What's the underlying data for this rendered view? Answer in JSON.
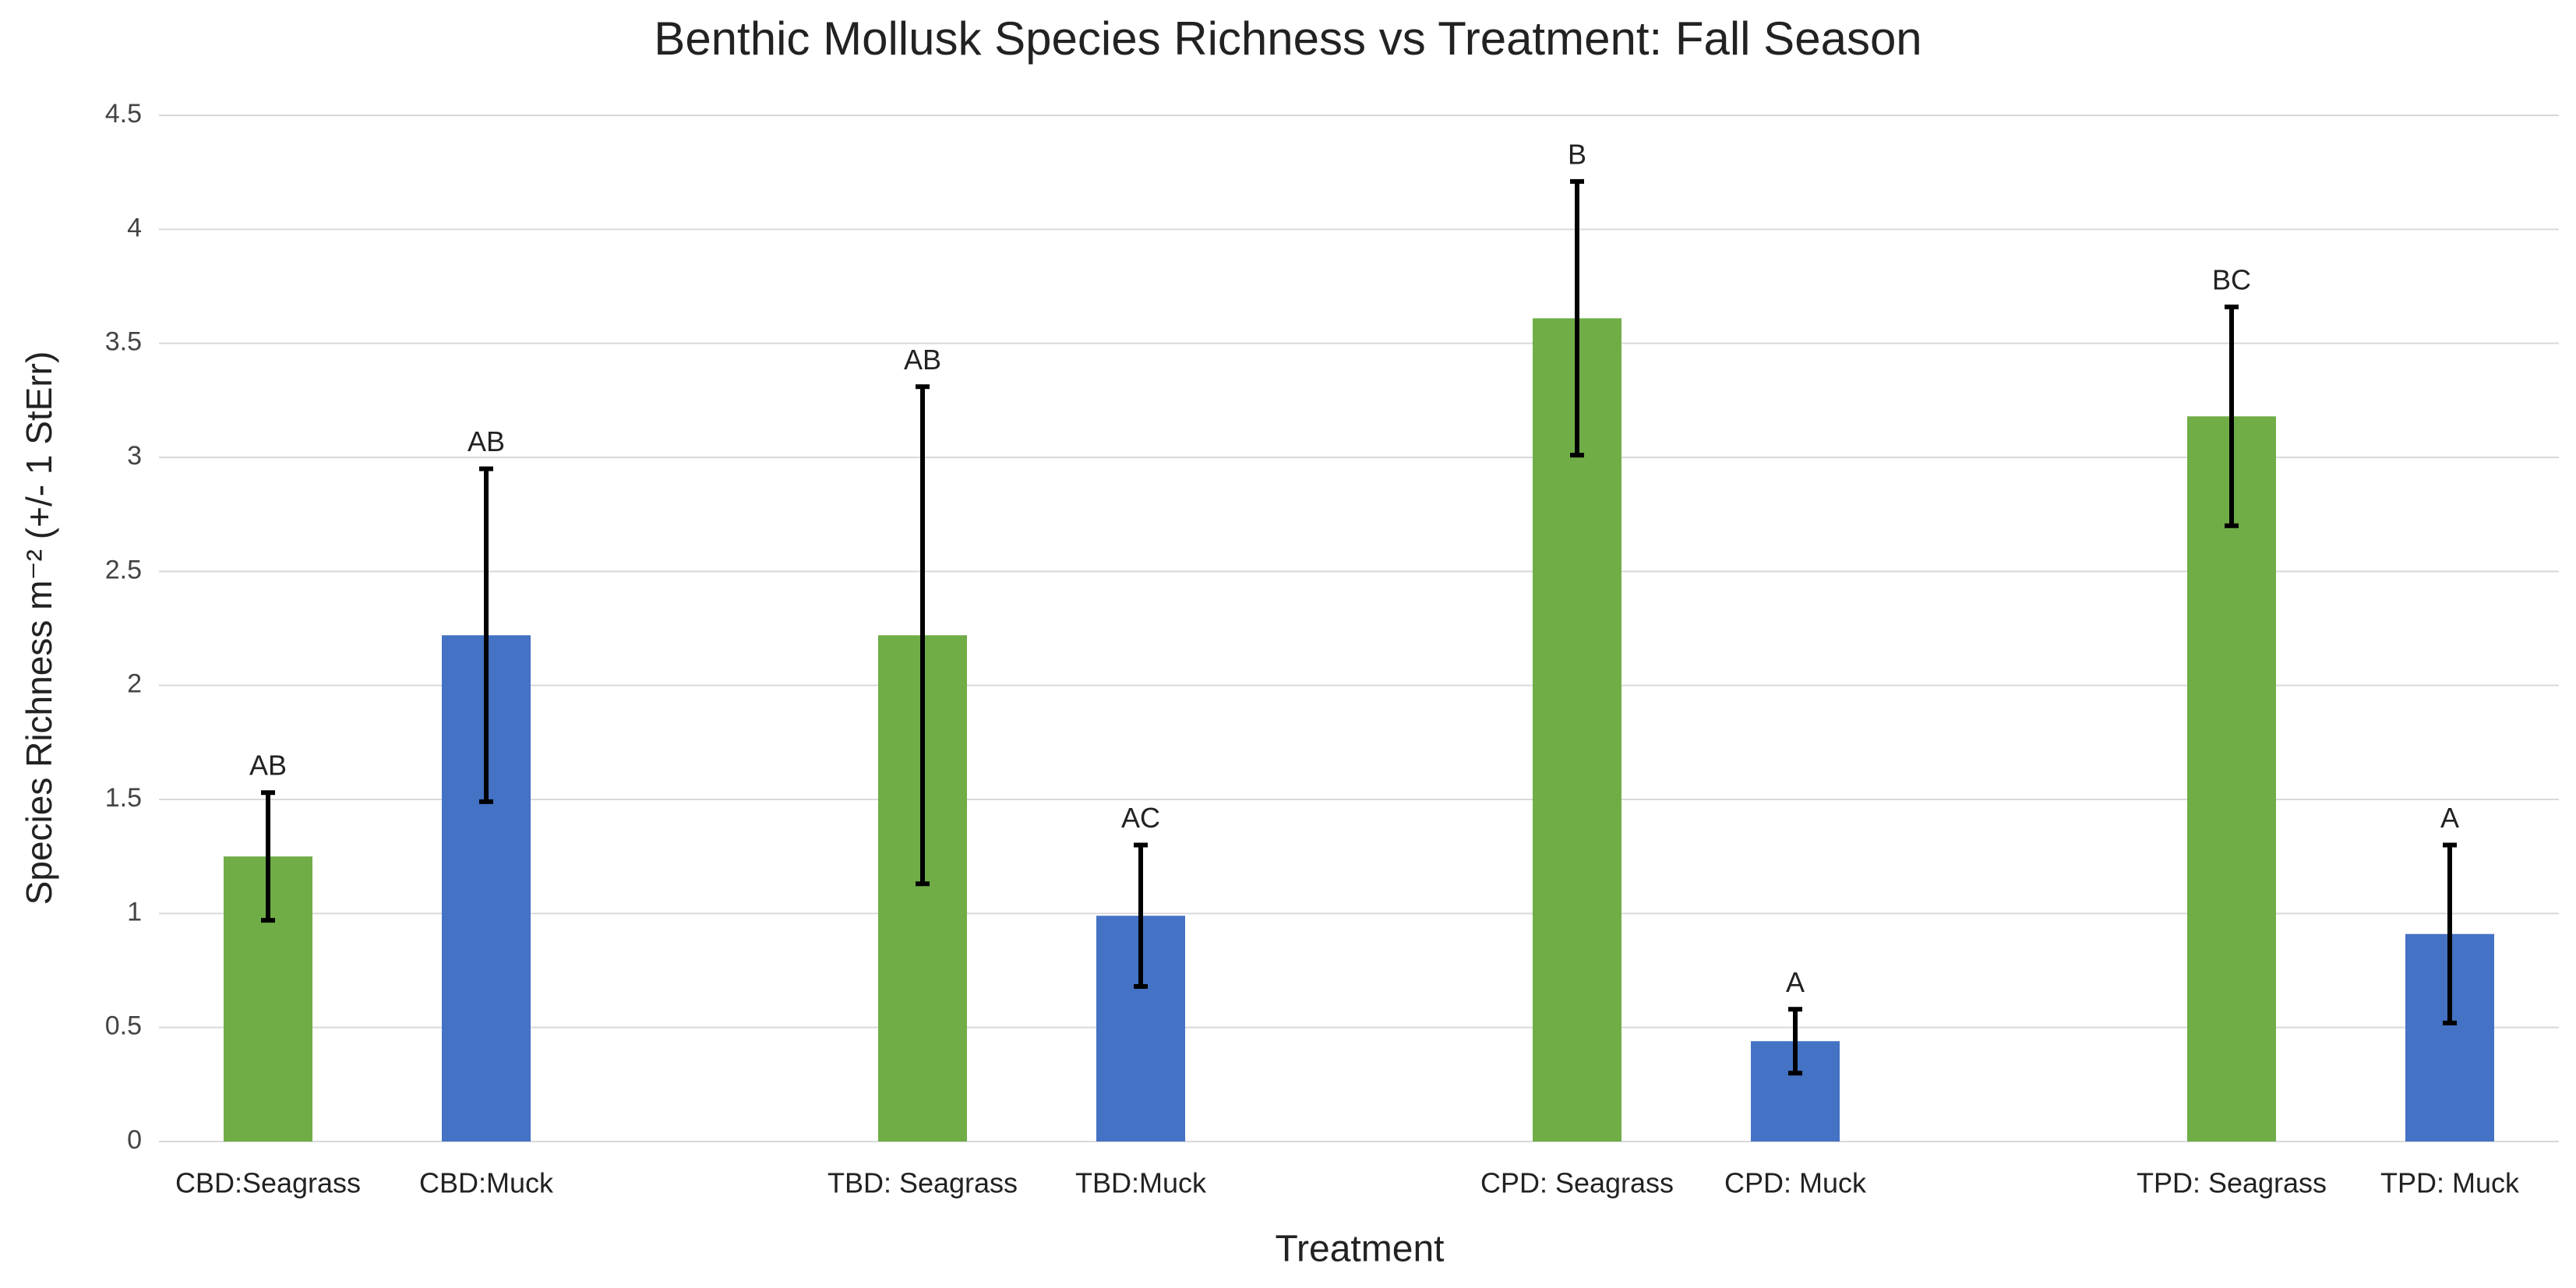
{
  "chart_data": {
    "type": "bar",
    "title": "Benthic Mollusk Species Richness vs Treatment: Fall Season",
    "x_label": "Treatment",
    "y_label": "Species Richness m⁻² (+/- 1 StErr)",
    "categories": [
      "CBD:Seagrass",
      "CBD:Muck",
      null,
      "TBD: Seagrass",
      "TBD:Muck",
      null,
      "CPD: Seagrass",
      "CPD: Muck",
      null,
      "TPD: Seagrass",
      "TPD: Muck"
    ],
    "values": [
      1.25,
      2.22,
      null,
      2.22,
      0.99,
      null,
      3.61,
      0.44,
      null,
      3.18,
      0.91
    ],
    "errors": [
      0.28,
      0.73,
      null,
      1.09,
      0.31,
      null,
      0.6,
      0.14,
      null,
      0.48,
      0.39
    ],
    "colors": [
      "#70ad47",
      "#4472c4",
      null,
      "#70ad47",
      "#4472c4",
      null,
      "#70ad47",
      "#4472c4",
      null,
      "#70ad47",
      "#4472c4"
    ],
    "annotations": [
      "AB",
      "AB",
      null,
      "AB",
      "AC",
      null,
      "B",
      "A",
      null,
      "BC",
      "A"
    ],
    "ylim": [
      0,
      4.5
    ],
    "yticks": [
      0,
      0.5,
      1,
      1.5,
      2,
      2.5,
      3,
      3.5,
      4,
      4.5
    ],
    "grid": true
  }
}
